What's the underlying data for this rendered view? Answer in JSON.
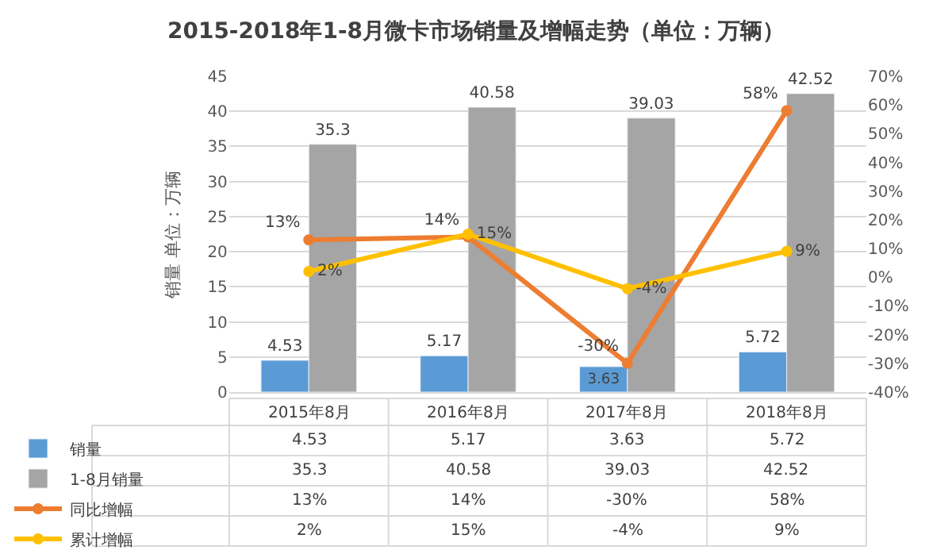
{
  "chart_data": {
    "type": "bar",
    "title": "2015-2018年1-8月微卡市场销量及增幅走势（单位：万辆）",
    "ylabel": "销量 单位：万辆",
    "categories": [
      "2015年8月",
      "2016年8月",
      "2017年8月",
      "2018年8月"
    ],
    "series": [
      {
        "name": "销量",
        "color": "#5b9bd5",
        "values": [
          4.53,
          5.17,
          3.63,
          5.72
        ],
        "value_labels": [
          "4.53",
          "5.17",
          "3.63",
          "5.72"
        ]
      },
      {
        "name": "1-8月销量",
        "color": "#a5a5a5",
        "values": [
          35.3,
          40.58,
          39.03,
          42.52
        ],
        "value_labels": [
          "35.3",
          "40.58",
          "39.03",
          "42.52"
        ]
      },
      {
        "name": "同比增幅",
        "type": "line",
        "axis": "y2",
        "color": "#ed7d31",
        "values": [
          13,
          14,
          -30,
          58
        ],
        "value_labels": [
          "13%",
          "14%",
          "-30%",
          "58%"
        ]
      },
      {
        "name": "累计增幅",
        "type": "line",
        "axis": "y2",
        "color": "#ffc000",
        "values": [
          2,
          15,
          -4,
          9
        ],
        "value_labels": [
          "2%",
          "15%",
          "-4%",
          "9%"
        ]
      }
    ],
    "ylim": [
      0,
      45
    ],
    "yticks": [
      0,
      5,
      10,
      15,
      20,
      25,
      30,
      35,
      40,
      45
    ],
    "y2lim": [
      -40,
      70
    ],
    "y2ticks": [
      {
        "value": -40,
        "label": "-40%"
      },
      {
        "value": -30,
        "label": "-30%"
      },
      {
        "value": -20,
        "label": "-20%"
      },
      {
        "value": -10,
        "label": "-10%"
      },
      {
        "value": 0,
        "label": "0%"
      },
      {
        "value": 10,
        "label": "10%"
      },
      {
        "value": 20,
        "label": "20%"
      },
      {
        "value": 30,
        "label": "30%"
      },
      {
        "value": 40,
        "label": "40%"
      },
      {
        "value": 50,
        "label": "50%"
      },
      {
        "value": 60,
        "label": "60%"
      },
      {
        "value": 70,
        "label": "70%"
      }
    ],
    "grid": "y",
    "legend": "bottom",
    "marker": "circle",
    "line_style": "solid"
  }
}
